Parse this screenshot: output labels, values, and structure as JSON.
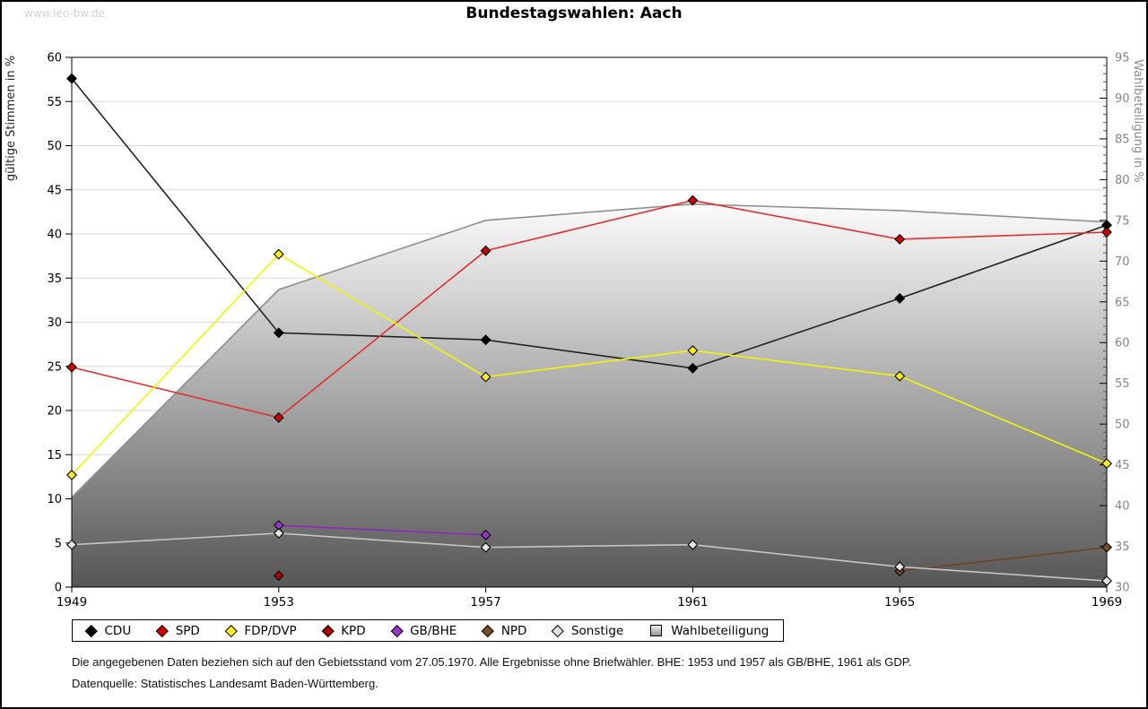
{
  "page": {
    "watermark": "www.leo-bw.de",
    "title": "Bundestagswahlen: Aach",
    "footnote1": "Die angegebenen Daten beziehen sich auf den Gebietsstand vom 27.05.1970. Alle Ergebnisse ohne Briefwähler. BHE: 1953 und 1957 als GB/BHE, 1961 als GDP.",
    "footnote2": "Datenquelle: Statistisches Landesamt Baden-Württemberg."
  },
  "chart_data": {
    "type": "line",
    "title": "Bundestagswahlen: Aach",
    "x": [
      1949,
      1953,
      1957,
      1961,
      1965,
      1969
    ],
    "left_axis": {
      "label": "gültige Stimmen in %",
      "min": 0,
      "max": 60,
      "step": 5
    },
    "right_axis": {
      "label": "Wahlbeteiligung in %",
      "min": 30,
      "max": 95,
      "step": 5,
      "minor_step": 1
    },
    "grid": "horizontal",
    "legend_position": "bottom",
    "series": [
      {
        "name": "CDU",
        "line_color": "#222222",
        "marker_color": "#000000",
        "values": [
          57.6,
          28.8,
          28.0,
          24.8,
          32.7,
          41.0
        ]
      },
      {
        "name": "SPD",
        "line_color": "#e03030",
        "marker_color": "#cc0000",
        "values": [
          24.9,
          19.2,
          38.1,
          43.8,
          39.4,
          40.2
        ]
      },
      {
        "name": "FDP/DVP",
        "line_color": "#f2f20a",
        "marker_color": "#ffee22",
        "values": [
          12.7,
          37.7,
          23.8,
          26.8,
          23.9,
          14.0
        ]
      },
      {
        "name": "KPD",
        "line_color": "#990000",
        "marker_color": "#aa0000",
        "values": [
          null,
          1.3,
          null,
          null,
          null,
          null
        ]
      },
      {
        "name": "GB/BHE",
        "line_color": "#8a2bbb",
        "marker_color": "#9933cc",
        "values": [
          null,
          7.0,
          5.9,
          null,
          null,
          null
        ]
      },
      {
        "name": "NPD",
        "line_color": "#6e4423",
        "marker_color": "#7b4a28",
        "values": [
          null,
          null,
          null,
          null,
          1.8,
          4.5
        ]
      },
      {
        "name": "Sonstige",
        "line_color": "#c4c4c4",
        "marker_color": "#e2e2e2",
        "values": [
          4.8,
          6.1,
          4.5,
          4.8,
          2.3,
          0.7
        ]
      }
    ],
    "turnout": {
      "name": "Wahlbeteiligung",
      "axis": "right",
      "style": "area",
      "values": [
        41.0,
        66.5,
        75.0,
        77.0,
        76.2,
        74.8
      ],
      "area_top_color": "#fbfbfb",
      "area_bottom_color": "#565656",
      "edge_color": "#8f8f8f"
    }
  }
}
